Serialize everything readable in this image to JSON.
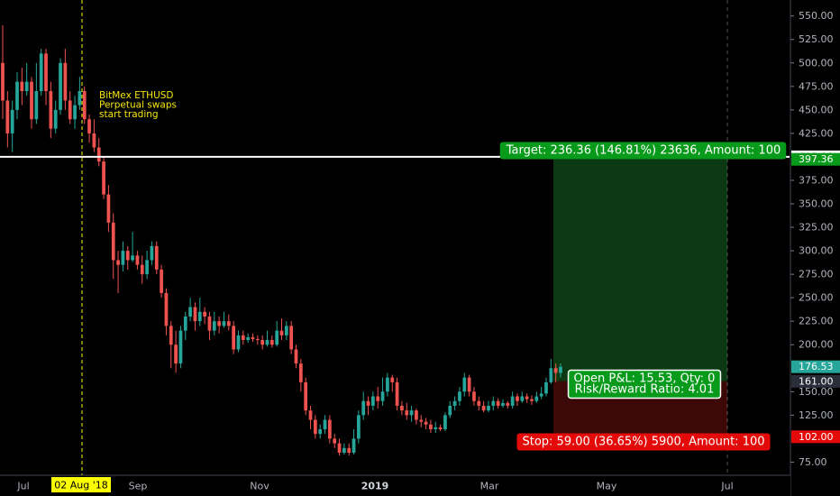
{
  "colors": {
    "up": "#26a69a",
    "down": "#ef5350",
    "target_zone": "#0b3a12",
    "stop_zone": "#3d0808",
    "label_green": "#089b1b",
    "label_red": "#e50a0a",
    "highlight_yellow": "#fbff00",
    "axis_text": "#b2b5be"
  },
  "chart_data": {
    "type": "candlestick",
    "y_axis": {
      "range": [
        61,
        567
      ],
      "ticks": [
        "550.00",
        "525.00",
        "500.00",
        "475.00",
        "450.00",
        "425.00",
        "375.00",
        "350.00",
        "325.00",
        "300.00",
        "275.00",
        "250.00",
        "225.00",
        "200.00",
        "150.00",
        "125.00",
        "75.00"
      ]
    },
    "x_axis": {
      "ticks": [
        {
          "label": "Jul",
          "bold": false
        },
        {
          "label": "Sep",
          "bold": false
        },
        {
          "label": "Nov",
          "bold": false
        },
        {
          "label": "2019",
          "bold": true
        },
        {
          "label": "Mar",
          "bold": false
        },
        {
          "label": "May",
          "bold": false
        },
        {
          "label": "Jul",
          "bold": false
        }
      ],
      "highlight_label": "02 Aug '18"
    },
    "annotation": {
      "lines": [
        "BitMex ETHUSD",
        "Perpetual swaps",
        "start trading"
      ]
    },
    "horizontal_line": {
      "value": 400,
      "label": "400.00"
    },
    "price_tags": [
      {
        "value": 397.36,
        "label": "397.36",
        "color": "#089b1b"
      },
      {
        "value": 176.53,
        "label": "176.53",
        "color": "#26a69a"
      },
      {
        "value": 161.0,
        "label": "161.00",
        "color": "#2a2e39"
      },
      {
        "value": 102.0,
        "label": "102.00",
        "color": "#e50a0a"
      }
    ],
    "position": {
      "entry": 161.0,
      "target": 397.36,
      "stop": 102.0,
      "target_label": "Target: 236.36 (146.81%) 23636, Amount: 100",
      "stop_label": "Stop: 59.00 (36.65%) 5900, Amount: 100",
      "pnl_label": "Open P&L: 15.53, Qty: 0",
      "rr_label": "Risk/Reward Ratio: 4.01"
    },
    "candles": [
      [
        500,
        460,
        540,
        440
      ],
      [
        460,
        425,
        470,
        410
      ],
      [
        425,
        450,
        460,
        405
      ],
      [
        450,
        480,
        490,
        440
      ],
      [
        480,
        470,
        495,
        455
      ],
      [
        470,
        480,
        500,
        465
      ],
      [
        480,
        440,
        485,
        430
      ],
      [
        440,
        470,
        500,
        435
      ],
      [
        470,
        510,
        515,
        465
      ],
      [
        510,
        470,
        515,
        455
      ],
      [
        470,
        430,
        480,
        420
      ],
      [
        430,
        450,
        460,
        425
      ],
      [
        450,
        500,
        505,
        445
      ],
      [
        500,
        460,
        515,
        450
      ],
      [
        460,
        440,
        470,
        435
      ],
      [
        440,
        455,
        465,
        430
      ],
      [
        455,
        470,
        485,
        450
      ],
      [
        470,
        440,
        475,
        435
      ],
      [
        440,
        425,
        445,
        415
      ],
      [
        425,
        410,
        440,
        405
      ],
      [
        410,
        395,
        420,
        390
      ],
      [
        395,
        360,
        400,
        355
      ],
      [
        360,
        330,
        370,
        320
      ],
      [
        330,
        290,
        340,
        270
      ],
      [
        290,
        285,
        300,
        255
      ],
      [
        285,
        300,
        310,
        278
      ],
      [
        300,
        290,
        305,
        280
      ],
      [
        290,
        295,
        320,
        288
      ],
      [
        295,
        285,
        300,
        280
      ],
      [
        285,
        275,
        295,
        265
      ],
      [
        275,
        290,
        300,
        270
      ],
      [
        290,
        305,
        310,
        285
      ],
      [
        305,
        280,
        310,
        275
      ],
      [
        280,
        255,
        285,
        250
      ],
      [
        255,
        220,
        260,
        210
      ],
      [
        220,
        200,
        225,
        175
      ],
      [
        200,
        180,
        215,
        170
      ],
      [
        180,
        215,
        220,
        175
      ],
      [
        215,
        230,
        235,
        205
      ],
      [
        230,
        240,
        250,
        225
      ],
      [
        240,
        225,
        245,
        215
      ],
      [
        225,
        235,
        250,
        220
      ],
      [
        235,
        230,
        240,
        222
      ],
      [
        230,
        215,
        235,
        205
      ],
      [
        215,
        225,
        235,
        210
      ],
      [
        225,
        220,
        230,
        212
      ],
      [
        220,
        225,
        235,
        218
      ],
      [
        225,
        220,
        232,
        215
      ],
      [
        220,
        195,
        225,
        190
      ],
      [
        195,
        210,
        215,
        192
      ],
      [
        210,
        205,
        215,
        200
      ],
      [
        205,
        208,
        212,
        202
      ],
      [
        208,
        206,
        212,
        203
      ],
      [
        206,
        205,
        210,
        200
      ],
      [
        205,
        200,
        210,
        195
      ],
      [
        200,
        205,
        215,
        198
      ],
      [
        205,
        200,
        210,
        197
      ],
      [
        200,
        215,
        225,
        198
      ],
      [
        215,
        210,
        228,
        205
      ],
      [
        210,
        220,
        225,
        205
      ],
      [
        220,
        195,
        225,
        190
      ],
      [
        195,
        180,
        200,
        175
      ],
      [
        180,
        160,
        185,
        150
      ],
      [
        160,
        130,
        165,
        125
      ],
      [
        130,
        120,
        135,
        110
      ],
      [
        120,
        105,
        125,
        100
      ],
      [
        105,
        110,
        115,
        100
      ],
      [
        110,
        120,
        125,
        105
      ],
      [
        120,
        100,
        125,
        95
      ],
      [
        100,
        95,
        105,
        90
      ],
      [
        95,
        85,
        100,
        82
      ],
      [
        85,
        90,
        95,
        83
      ],
      [
        90,
        85,
        95,
        82
      ],
      [
        85,
        100,
        110,
        83
      ],
      [
        100,
        125,
        130,
        95
      ],
      [
        125,
        140,
        150,
        120
      ],
      [
        140,
        135,
        145,
        125
      ],
      [
        135,
        145,
        150,
        130
      ],
      [
        145,
        140,
        155,
        132
      ],
      [
        140,
        150,
        165,
        135
      ],
      [
        150,
        165,
        170,
        145
      ],
      [
        165,
        160,
        168,
        150
      ],
      [
        160,
        135,
        165,
        130
      ],
      [
        135,
        130,
        140,
        125
      ],
      [
        130,
        125,
        138,
        120
      ],
      [
        125,
        130,
        135,
        118
      ],
      [
        130,
        120,
        132,
        115
      ],
      [
        120,
        118,
        125,
        112
      ],
      [
        118,
        115,
        122,
        110
      ],
      [
        115,
        110,
        120,
        106
      ],
      [
        110,
        112,
        118,
        106
      ],
      [
        112,
        110,
        115,
        108
      ],
      [
        110,
        125,
        128,
        108
      ],
      [
        125,
        135,
        140,
        122
      ],
      [
        135,
        140,
        145,
        130
      ],
      [
        140,
        150,
        155,
        135
      ],
      [
        150,
        165,
        170,
        145
      ],
      [
        165,
        150,
        168,
        145
      ],
      [
        150,
        140,
        155,
        135
      ],
      [
        140,
        135,
        145,
        130
      ],
      [
        135,
        130,
        140,
        128
      ],
      [
        130,
        135,
        140,
        128
      ],
      [
        135,
        140,
        145,
        130
      ],
      [
        140,
        135,
        143,
        132
      ],
      [
        135,
        138,
        142,
        133
      ],
      [
        138,
        135,
        140,
        132
      ],
      [
        135,
        145,
        150,
        132
      ],
      [
        145,
        140,
        148,
        135
      ],
      [
        140,
        145,
        150,
        138
      ],
      [
        145,
        142,
        148,
        138
      ],
      [
        142,
        140,
        146,
        136
      ],
      [
        140,
        145,
        150,
        138
      ],
      [
        145,
        148,
        155,
        142
      ],
      [
        148,
        160,
        165,
        145
      ],
      [
        160,
        175,
        185,
        158
      ],
      [
        175,
        170,
        180,
        160
      ],
      [
        170,
        176.5,
        180,
        165
      ]
    ]
  }
}
